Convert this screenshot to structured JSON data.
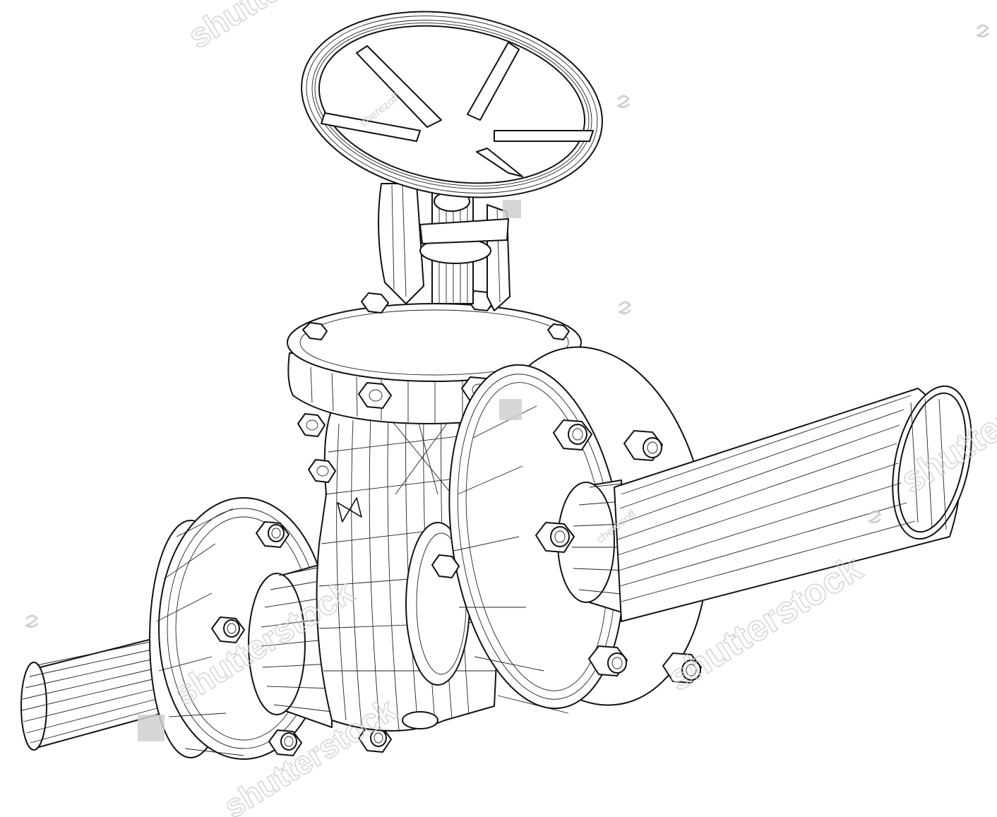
{
  "image": {
    "subject": "gate-valve-wireframe",
    "line_color": "#111111",
    "background_color": "#ffffff"
  },
  "watermark": {
    "brand_text": "shutterstock",
    "author_text": "cherezoff",
    "color": "#cfcfcf"
  }
}
